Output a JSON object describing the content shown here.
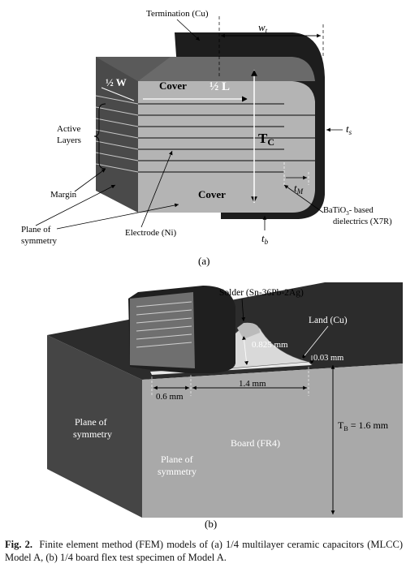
{
  "figure_a": {
    "label": "(a)",
    "termination": "Termination (Cu)",
    "wt": "w",
    "wt_sub": "t",
    "half_w": "½ W",
    "cover_top": "Cover",
    "half_l": "½ L",
    "tc": "T",
    "tc_sub": "C",
    "ts": "t",
    "ts_sub": "s",
    "active_1": "Active",
    "active_2": "Layers",
    "margin": "Margin",
    "tm": "t",
    "tm_sub": "M",
    "cover_bottom": "Cover",
    "plane_1": "Plane of",
    "plane_2": "symmetry",
    "electrode": "Electrode (Ni)",
    "dielectric_1": "BaTiO",
    "dielectric_sub": "3",
    "dielectric_2": "- based",
    "dielectric_3": "dielectrics (X7R)",
    "tb": "t",
    "tb_sub": "b"
  },
  "figure_b": {
    "label": "(b)",
    "solder": "Solder (Sn-36Pb-2Ag)",
    "land": "Land (Cu)",
    "dim_0825": "0.825 mm",
    "dim_003": "0.03 mm",
    "dim_06": "0.6 mm",
    "dim_14": "1.4 mm",
    "plane_left_1": "Plane of",
    "plane_left_2": "symmetry",
    "board": "Board (FR4)",
    "plane_front_1": "Plane of",
    "plane_front_2": "symmetry",
    "tb_label": "T",
    "tb_sub": "B",
    "tb_value": " = 1.6 mm"
  },
  "caption": {
    "prefix": "Fig. 2.",
    "text": "Finite element method (FEM) models of (a) 1/4 multilayer ceramic capacitors (MLCC) Model A, (b) 1/4 board flex test specimen of Model A."
  }
}
